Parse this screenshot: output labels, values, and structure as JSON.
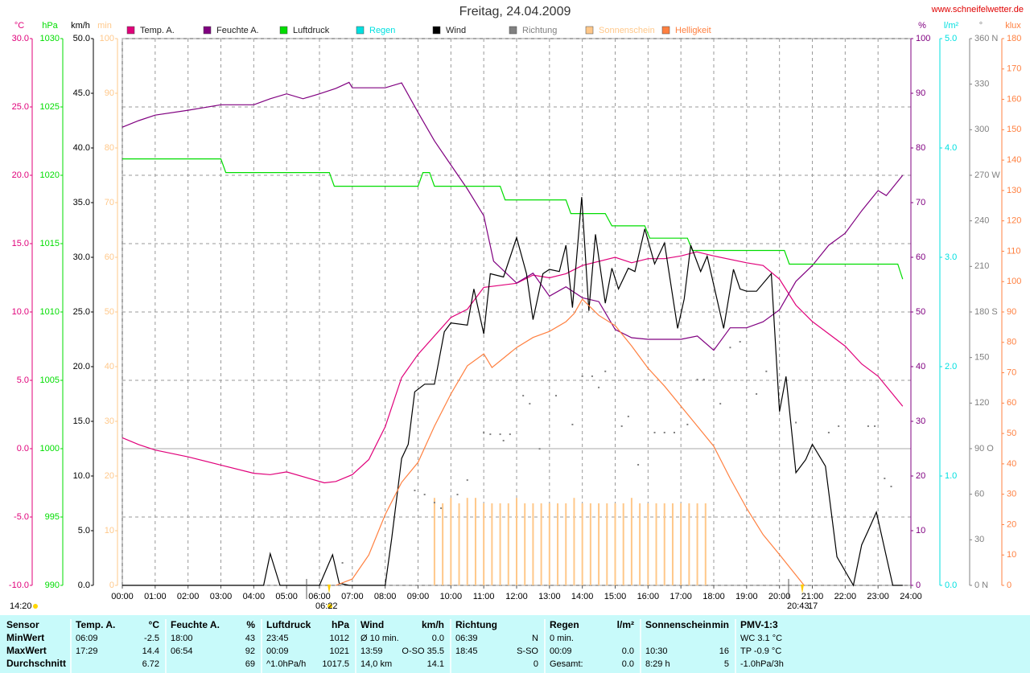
{
  "chart_data": {
    "type": "combo",
    "title": "Freitag, 24.04.2009",
    "source": "www.schneifelwetter.de",
    "xlim": [
      0,
      24
    ],
    "xticks": [
      {
        "value": 0,
        "label": "00:00"
      },
      {
        "value": 1,
        "label": "01:00"
      },
      {
        "value": 2,
        "label": "02:00"
      },
      {
        "value": 3,
        "label": "03:00"
      },
      {
        "value": 4,
        "label": "04:00"
      },
      {
        "value": 5,
        "label": "05:00"
      },
      {
        "value": 6,
        "label": "06:00"
      },
      {
        "value": 7,
        "label": "07:00"
      },
      {
        "value": 8,
        "label": "08:00"
      },
      {
        "value": 9,
        "label": "09:00"
      },
      {
        "value": 10,
        "label": "10:00"
      },
      {
        "value": 11,
        "label": "11:00"
      },
      {
        "value": 12,
        "label": "12:00"
      },
      {
        "value": 13,
        "label": "13:00"
      },
      {
        "value": 14,
        "label": "14:00"
      },
      {
        "value": 15,
        "label": "15:00"
      },
      {
        "value": 16,
        "label": "16:00"
      },
      {
        "value": 17,
        "label": "17:00"
      },
      {
        "value": 18,
        "label": "18:00"
      },
      {
        "value": 19,
        "label": "19:00"
      },
      {
        "value": 20,
        "label": "20:00"
      },
      {
        "value": 21,
        "label": "21:00"
      },
      {
        "value": 22,
        "label": "22:00"
      },
      {
        "value": 23,
        "label": "23:00"
      },
      {
        "value": 24,
        "label": "24:00"
      }
    ],
    "grid": true,
    "annotations": [
      "14:20",
      "06:22",
      "20:43",
      "17"
    ],
    "series": [
      {
        "name": "Temp. A.",
        "type": "line",
        "color": "#e0007a",
        "side": "left",
        "unit": "°C",
        "ylim": [
          -10,
          30
        ],
        "yticks": [
          {
            "value": -10,
            "label": "-10.0"
          },
          {
            "value": -5,
            "label": "-5.0"
          },
          {
            "value": 0,
            "label": "0.0"
          },
          {
            "value": 5,
            "label": "5.0"
          },
          {
            "value": 10,
            "label": "10.0"
          },
          {
            "value": 15,
            "label": "15.0"
          },
          {
            "value": 20,
            "label": "20.0"
          },
          {
            "value": 25,
            "label": "25.0"
          },
          {
            "value": 30,
            "label": "30.0"
          }
        ],
        "x": [
          0,
          0.5,
          1,
          2,
          3,
          4,
          4.5,
          5,
          6.15,
          6.5,
          7,
          7.5,
          8,
          8.5,
          9,
          10,
          10.5,
          11,
          12,
          12.5,
          13,
          13.5,
          14,
          15,
          15.5,
          16,
          16.5,
          17,
          17.48,
          18,
          19,
          19.5,
          20,
          20.5,
          21,
          22,
          22.5,
          23,
          23.75
        ],
        "values": [
          0.8,
          0.3,
          -0.1,
          -0.6,
          -1.2,
          -1.8,
          -1.9,
          -1.7,
          -2.5,
          -2.4,
          -1.9,
          -0.8,
          1.6,
          5.2,
          6.9,
          9.6,
          10.2,
          11.8,
          12.1,
          12.7,
          12.5,
          12.8,
          13.4,
          14.0,
          13.6,
          13.9,
          13.9,
          14.1,
          14.4,
          14.1,
          13.6,
          13.4,
          12.4,
          10.5,
          9.3,
          7.5,
          6.2,
          5.3,
          3.1
        ]
      },
      {
        "name": "Feuchte A.",
        "type": "line",
        "color": "#800080",
        "side": "right",
        "unit": "%",
        "ylim": [
          0,
          100
        ],
        "yticks": [
          0,
          10,
          20,
          30,
          40,
          50,
          60,
          70,
          80,
          90,
          100
        ],
        "x": [
          0,
          0.5,
          1,
          2,
          3,
          4,
          4.5,
          5,
          5.5,
          6,
          6.5,
          6.9,
          7,
          8,
          8.5,
          9,
          9.5,
          10,
          10.5,
          11,
          11.3,
          12,
          12.5,
          13,
          13.5,
          14,
          14.5,
          15,
          15.5,
          16,
          17,
          17.5,
          18,
          18.5,
          19,
          19.5,
          20,
          20.5,
          21,
          21.5,
          22,
          22.5,
          23,
          23.25,
          23.75
        ],
        "values": [
          83.8,
          85.0,
          86.0,
          86.9,
          87.9,
          87.9,
          89.0,
          89.9,
          89.0,
          89.9,
          90.9,
          92,
          91.0,
          91.0,
          91.9,
          86.5,
          81.3,
          76.9,
          72.5,
          67.6,
          59.3,
          55.3,
          57.1,
          52.9,
          54.6,
          52.6,
          51.9,
          46.8,
          45.3,
          45.0,
          45.0,
          45.6,
          43,
          47.1,
          47.1,
          48.2,
          50.4,
          55.6,
          58.5,
          62.2,
          64.4,
          68.5,
          72.2,
          71.3,
          75.0
        ]
      },
      {
        "name": "Luftdruck",
        "type": "line",
        "color": "#00dd00",
        "side": "left",
        "unit": "hPa",
        "ylim": [
          990,
          1030
        ],
        "yticks": [
          990,
          995,
          1000,
          1005,
          1010,
          1015,
          1020,
          1025,
          1030
        ],
        "x": [
          0,
          3,
          3.15,
          6.3,
          6.45,
          9.0,
          9.15,
          9.35,
          9.5,
          11.5,
          11.65,
          13.5,
          13.65,
          14.7,
          14.9,
          15.9,
          16.05,
          17.2,
          17.35,
          20.15,
          20.3,
          23.6,
          23.75
        ],
        "values": [
          1021.2,
          1021.2,
          1020.2,
          1020.2,
          1019.2,
          1019.2,
          1020.2,
          1020.2,
          1019.2,
          1019.2,
          1018.2,
          1018.2,
          1017.2,
          1017.2,
          1016.3,
          1016.3,
          1015.4,
          1015.4,
          1014.5,
          1014.5,
          1013.5,
          1013.5,
          1012.4
        ]
      },
      {
        "name": "Regen",
        "type": "bar",
        "color": "#00e0e0",
        "side": "right",
        "unit": "l/m²",
        "ylim": [
          0,
          5
        ],
        "yticks": [
          {
            "value": 0,
            "label": "0.0"
          },
          {
            "value": 1,
            "label": "1.0"
          },
          {
            "value": 2,
            "label": "2.0"
          },
          {
            "value": 3,
            "label": "3.0"
          },
          {
            "value": 4,
            "label": "4.0"
          },
          {
            "value": 5,
            "label": "5.0"
          }
        ],
        "x": [],
        "values": []
      },
      {
        "name": "Wind",
        "type": "line",
        "color": "#000000",
        "side": "left",
        "unit": "km/h",
        "ylim": [
          0,
          50
        ],
        "yticks": [
          {
            "value": 0,
            "label": "0.0"
          },
          {
            "value": 5,
            "label": "5.0"
          },
          {
            "value": 10,
            "label": "10.0"
          },
          {
            "value": 15,
            "label": "15.0"
          },
          {
            "value": 20,
            "label": "20.0"
          },
          {
            "value": 25,
            "label": "25.0"
          },
          {
            "value": 30,
            "label": "30.0"
          },
          {
            "value": 35,
            "label": "35.0"
          },
          {
            "value": 40,
            "label": "40.0"
          },
          {
            "value": 45,
            "label": "45.0"
          },
          {
            "value": 50,
            "label": "50.0"
          }
        ],
        "x": [
          0,
          4.3,
          4.5,
          4.8,
          6.0,
          6.4,
          6.6,
          6.9,
          8.0,
          8.2,
          8.5,
          8.7,
          8.9,
          9.2,
          9.5,
          9.8,
          10.0,
          10.5,
          10.7,
          11.0,
          11.2,
          11.6,
          12.0,
          12.3,
          12.5,
          12.8,
          13.0,
          13.3,
          13.5,
          13.7,
          13.98,
          14.2,
          14.4,
          14.7,
          14.9,
          15.1,
          15.4,
          15.6,
          15.9,
          16.2,
          16.5,
          16.9,
          17.1,
          17.3,
          17.6,
          17.8,
          18.3,
          18.6,
          18.8,
          19.0,
          19.3,
          19.75,
          20.0,
          20.2,
          20.5,
          20.8,
          21.0,
          21.4,
          21.75,
          22.25,
          22.5,
          22.7,
          22.95,
          23.45,
          23.75
        ],
        "values": [
          0,
          0,
          2.9,
          0,
          0,
          2.8,
          0.2,
          0,
          0,
          4.3,
          11.6,
          12.9,
          17.7,
          18.4,
          18.4,
          23.2,
          24.0,
          23.8,
          27.1,
          23.0,
          28.5,
          28.2,
          31.8,
          28.5,
          24.3,
          28.5,
          28.9,
          28.7,
          31.1,
          25.4,
          35.5,
          25.1,
          32.1,
          25.8,
          29.0,
          27.1,
          29.0,
          28.7,
          32.6,
          29.4,
          31.3,
          23.5,
          26.2,
          31.1,
          28.7,
          30.1,
          23.5,
          28.9,
          27.1,
          26.9,
          26.9,
          28.5,
          15.9,
          19.1,
          10.3,
          11.5,
          12.9,
          10.9,
          2.6,
          0,
          3.7,
          5.0,
          6.7,
          0,
          0
        ]
      },
      {
        "name": "Richtung",
        "type": "scatter",
        "color": "#808080",
        "side": "right",
        "unit": "°",
        "ylim": [
          0,
          360
        ],
        "yticks": [
          {
            "value": 0,
            "label": "0 N"
          },
          30,
          60,
          {
            "value": 90,
            "label": "90 O"
          },
          120,
          150,
          {
            "value": 180,
            "label": "180 S"
          },
          210,
          240,
          {
            "value": 270,
            "label": "270 W"
          },
          300,
          330,
          {
            "value": 360,
            "label": "360 N"
          }
        ],
        "x": [
          6.7,
          8.9,
          9.2,
          9.5,
          9.7,
          10.2,
          10.5,
          11.0,
          11.2,
          11.5,
          11.6,
          11.8,
          12.2,
          12.4,
          12.7,
          13.2,
          13.7,
          14.0,
          14.3,
          14.5,
          14.7,
          15.2,
          15.4,
          15.7,
          16.2,
          16.5,
          16.8,
          17.2,
          17.5,
          17.7,
          18.2,
          18.5,
          18.8,
          19.3,
          19.6,
          20.5,
          21.5,
          21.8,
          22.7,
          22.9,
          23.2,
          23.4
        ],
        "values": [
          14.8,
          62.5,
          59.8,
          54.5,
          50.8,
          59.8,
          69.3,
          100.6,
          99.5,
          99.5,
          95.3,
          99.5,
          124.9,
          119.6,
          89.9,
          124.9,
          105.9,
          137.7,
          137.7,
          130.3,
          140.9,
          104.8,
          111.2,
          79.4,
          100.6,
          100.6,
          100.6,
          105.9,
          135.5,
          135.5,
          119.6,
          156.6,
          160.4,
          126.0,
          140.9,
          107.2,
          100.6,
          104.8,
          104.8,
          104.8,
          70.4,
          65.1
        ]
      },
      {
        "name": "Sonnenschein",
        "type": "bar",
        "color": "#ffc88a",
        "side": "left",
        "unit": "min",
        "ylim": [
          0,
          100
        ],
        "yticks": [
          0,
          10,
          20,
          30,
          40,
          50,
          60,
          70,
          80,
          90,
          100
        ],
        "x": [
          9.5,
          9.75,
          10,
          10.25,
          10.5,
          10.75,
          11,
          11.25,
          11.5,
          11.75,
          12,
          12.25,
          12.5,
          12.75,
          13,
          13.25,
          13.5,
          13.75,
          14,
          14.25,
          14.5,
          14.75,
          15,
          15.25,
          15.5,
          15.75,
          16,
          16.25,
          16.5,
          16.75,
          17,
          17.25,
          17.5,
          17.75
        ],
        "values": [
          16,
          15,
          16,
          15,
          16,
          16,
          15,
          15,
          15,
          15,
          16,
          15,
          15,
          15,
          15,
          15,
          15,
          16,
          15,
          15,
          15,
          15,
          15,
          15,
          16,
          15,
          15,
          15,
          15,
          15,
          15,
          15,
          15,
          15
        ]
      },
      {
        "name": "Helligkeit",
        "type": "line",
        "color": "#ff8040",
        "side": "right",
        "unit": "klux",
        "ylim": [
          0,
          180
        ],
        "yticks": [
          0,
          10,
          20,
          30,
          40,
          50,
          60,
          70,
          80,
          90,
          100,
          110,
          120,
          130,
          140,
          150,
          160,
          170,
          180
        ],
        "x": [
          6.5,
          7,
          7.5,
          8,
          8.5,
          9,
          9.5,
          10,
          10.5,
          11,
          11.25,
          12,
          12.5,
          13,
          13.5,
          13.75,
          14,
          14.5,
          15,
          15.5,
          16,
          16.5,
          17,
          17.5,
          18,
          18.5,
          19,
          19.5,
          20,
          20.5,
          20.75
        ],
        "values": [
          0,
          2.1,
          10,
          23.3,
          33.9,
          40.5,
          52.4,
          63.0,
          72.3,
          76.2,
          71.7,
          78.3,
          81.6,
          83.6,
          86.8,
          89.5,
          94.2,
          88.9,
          85.5,
          78.8,
          71.5,
          65.6,
          59.0,
          52.4,
          45.8,
          35.2,
          25.4,
          16.7,
          10.1,
          3.4,
          0
        ]
      }
    ]
  },
  "table": {
    "header": "Sensor",
    "columns": [
      {
        "name": "Temp. A.",
        "unit": "°C"
      },
      {
        "name": "Feuchte A.",
        "unit": "%"
      },
      {
        "name": "Luftdruck",
        "unit": "hPa"
      },
      {
        "name": "Wind",
        "unit": "km/h"
      },
      {
        "name": "Richtung"
      },
      {
        "name": "Regen",
        "unit": "l/m²"
      },
      {
        "name": "Sonnenschein",
        "unit": "min"
      },
      {
        "name": "PMV-1:3"
      }
    ],
    "rows": [
      {
        "label": "MinWert",
        "cells": [
          {
            "left": "06:09",
            "right": "-2.5"
          },
          {
            "left": "18:00",
            "right": "43"
          },
          {
            "left": "23:45",
            "right": "1012"
          },
          {
            "left": "Ø 10 min.",
            "right": "0.0"
          },
          {
            "left": "06:39",
            "right": "N"
          },
          {
            "left": "0 min."
          },
          {},
          {
            "left": "WC 3.1 °C"
          }
        ]
      },
      {
        "label": "MaxWert",
        "cells": [
          {
            "left": "17:29",
            "right": "14.4"
          },
          {
            "left": "06:54",
            "right": "92"
          },
          {
            "left": "00:09",
            "right": "1021"
          },
          {
            "left": "13:59",
            "right": "O-SO 35.5"
          },
          {
            "left": "18:45",
            "right": "S-SO"
          },
          {
            "left": "00:09",
            "right": "0.0"
          },
          {
            "left": "10:30",
            "right": "16"
          },
          {
            "left": "TP -0.9 °C"
          }
        ]
      },
      {
        "label": "Durchschnitt",
        "cells": [
          {
            "right": "6.72"
          },
          {
            "right": "69"
          },
          {
            "left": "^1.0hPa/h",
            "right": "1017.5"
          },
          {
            "left": "14,0 km",
            "right": "14.1"
          },
          {
            "right": "0"
          },
          {
            "left": "Gesamt:",
            "right": "0.0"
          },
          {
            "left": "8:29 h",
            "right": "5"
          },
          {
            "left": "-1.0hPa/3h"
          }
        ]
      }
    ]
  }
}
